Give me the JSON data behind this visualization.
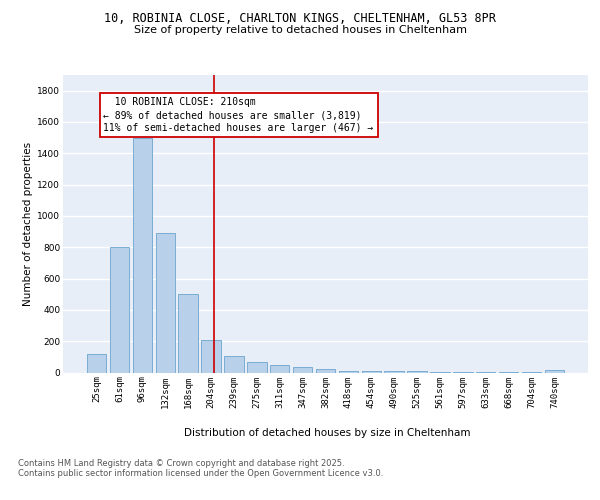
{
  "title_line1": "10, ROBINIA CLOSE, CHARLTON KINGS, CHELTENHAM, GL53 8PR",
  "title_line2": "Size of property relative to detached houses in Cheltenham",
  "xlabel": "Distribution of detached houses by size in Cheltenham",
  "ylabel": "Number of detached properties",
  "categories": [
    "25sqm",
    "61sqm",
    "96sqm",
    "132sqm",
    "168sqm",
    "204sqm",
    "239sqm",
    "275sqm",
    "311sqm",
    "347sqm",
    "382sqm",
    "418sqm",
    "454sqm",
    "490sqm",
    "525sqm",
    "561sqm",
    "597sqm",
    "633sqm",
    "668sqm",
    "704sqm",
    "740sqm"
  ],
  "values": [
    120,
    800,
    1500,
    890,
    500,
    210,
    105,
    65,
    45,
    35,
    25,
    8,
    8,
    8,
    8,
    5,
    5,
    5,
    5,
    5,
    18
  ],
  "bar_color": "#b8d0ea",
  "bar_edge_color": "#7aadd4",
  "background_color": "#e8eef8",
  "grid_color": "#ffffff",
  "annotation_line1": "  10 ROBINIA CLOSE: 210sqm",
  "annotation_line2": "← 89% of detached houses are smaller (3,819)",
  "annotation_line3": "11% of semi-detached houses are larger (467) →",
  "annotation_box_facecolor": "#ffffff",
  "annotation_box_edgecolor": "#cc0000",
  "vline_color": "#cc0000",
  "vline_x": 5.15,
  "ylim": [
    0,
    1900
  ],
  "yticks": [
    0,
    200,
    400,
    600,
    800,
    1000,
    1200,
    1400,
    1600,
    1800
  ],
  "footer_line1": "Contains HM Land Registry data © Crown copyright and database right 2025.",
  "footer_line2": "Contains public sector information licensed under the Open Government Licence v3.0.",
  "title1_fontsize": 8.5,
  "title2_fontsize": 8,
  "axis_label_fontsize": 7.5,
  "tick_fontsize": 6.5,
  "annotation_fontsize": 7,
  "footer_fontsize": 6
}
